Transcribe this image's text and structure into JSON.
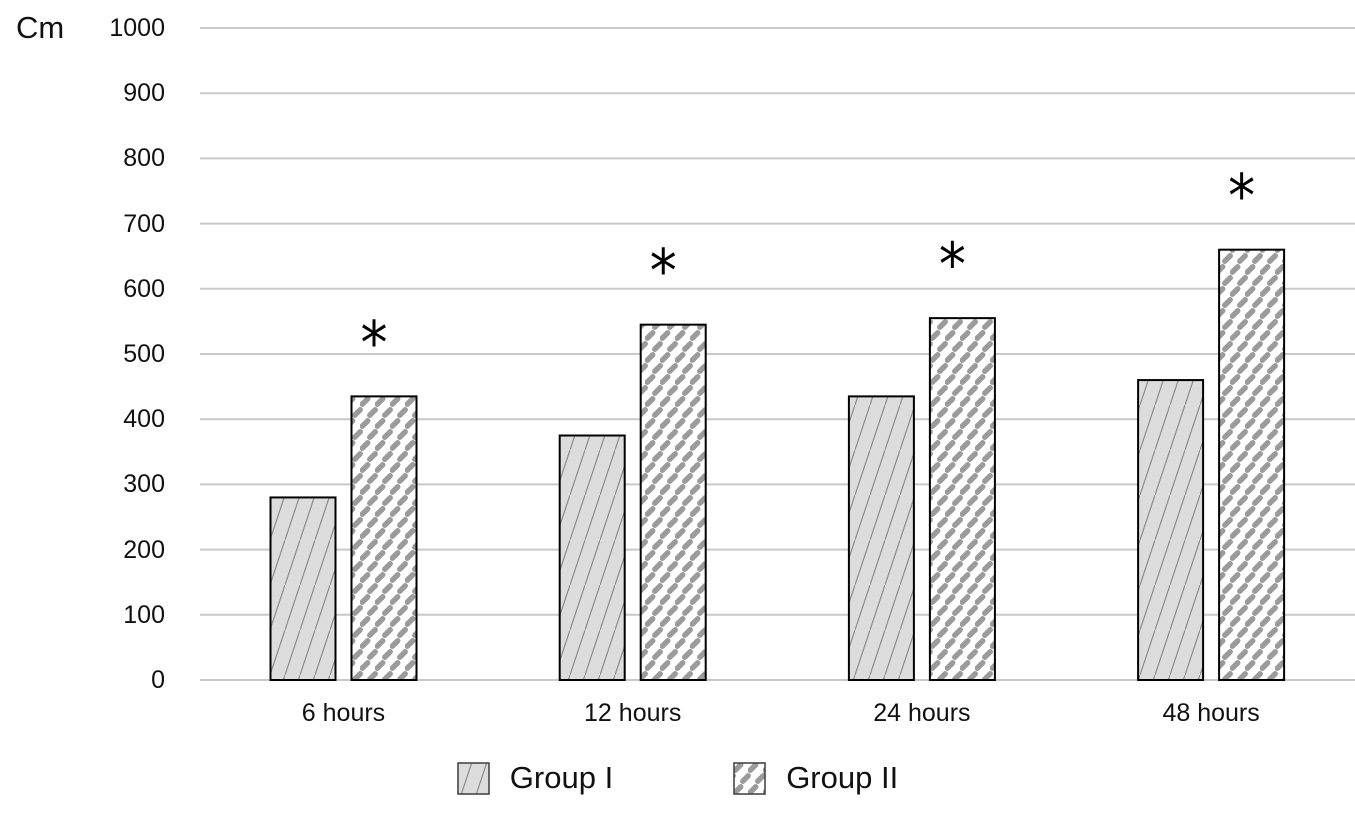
{
  "chart_data": {
    "type": "bar",
    "title": "",
    "ylabel": "Cm",
    "categories": [
      "6 hours",
      "12 hours",
      "24 hours",
      "48 hours"
    ],
    "series": [
      {
        "name": "Group I",
        "values": [
          280,
          375,
          435,
          460
        ],
        "pattern": "thin-steep-diagonal-hatch",
        "fill": "#dcdcdc",
        "hatch_color": "#8a8a8a",
        "significant": [
          false,
          false,
          false,
          false
        ]
      },
      {
        "name": "Group II",
        "values": [
          435,
          545,
          555,
          660
        ],
        "pattern": "wide-dashed-diagonal-hatch",
        "fill": "#ffffff",
        "hatch_color": "#9b9b9b",
        "significant": [
          true,
          true,
          true,
          true
        ]
      }
    ],
    "significance_marker": "*",
    "yticks": [
      0,
      100,
      200,
      300,
      400,
      500,
      600,
      700,
      800,
      900,
      1000
    ],
    "ylim": [
      0,
      1000
    ],
    "grid": true,
    "legend_position": "bottom",
    "colors": {
      "gridline": "#c9c9c9",
      "bar_border": "#000000",
      "text": "#000000",
      "background": "#ffffff"
    }
  }
}
